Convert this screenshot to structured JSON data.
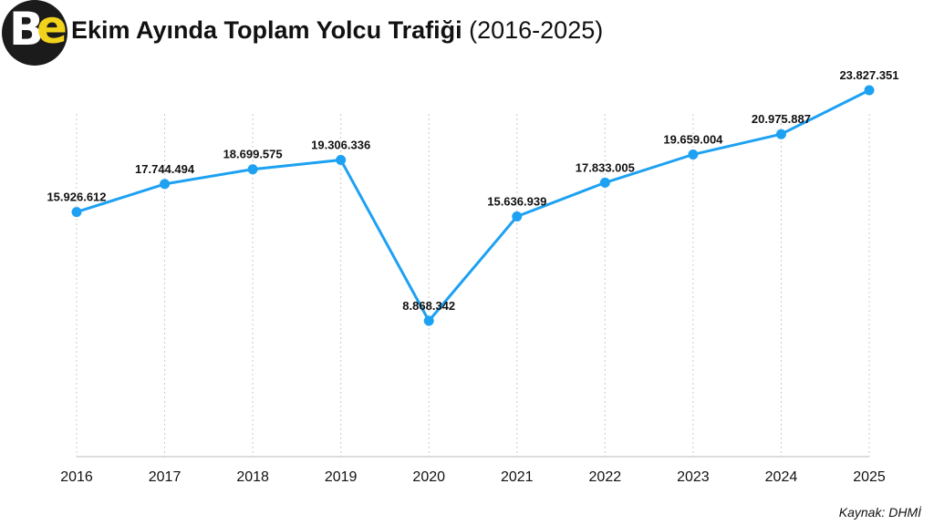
{
  "header": {
    "logo_text": "Be",
    "title_bold": "Ekim Ayında Toplam Yolcu Trafiği",
    "title_sub": "(2016-2025)"
  },
  "source": "Kaynak: DHMİ",
  "colors": {
    "line": "#1da1f2",
    "grid": "#cccccc",
    "logo_bg": "#1b1b1b",
    "logo_accent": "#f2d31c"
  },
  "chart_data": {
    "type": "line",
    "title": "Ekim Ayında Toplam Yolcu Trafiği (2016-2025)",
    "xlabel": "",
    "ylabel": "",
    "categories": [
      "2016",
      "2017",
      "2018",
      "2019",
      "2020",
      "2021",
      "2022",
      "2023",
      "2024",
      "2025"
    ],
    "values": [
      15926612,
      17744494,
      18699575,
      19306336,
      8868342,
      15636939,
      17833005,
      19659004,
      20975887,
      23827351
    ],
    "labels": [
      "15.926.612",
      "17.744.494",
      "18.699.575",
      "19.306.336",
      "8.868.342",
      "15.636.939",
      "17.833.005",
      "19.659.004",
      "20.975.887",
      "23.827.351"
    ],
    "ylim": [
      0,
      26500000
    ],
    "grid": "vertical-dotted",
    "legend": "none"
  }
}
